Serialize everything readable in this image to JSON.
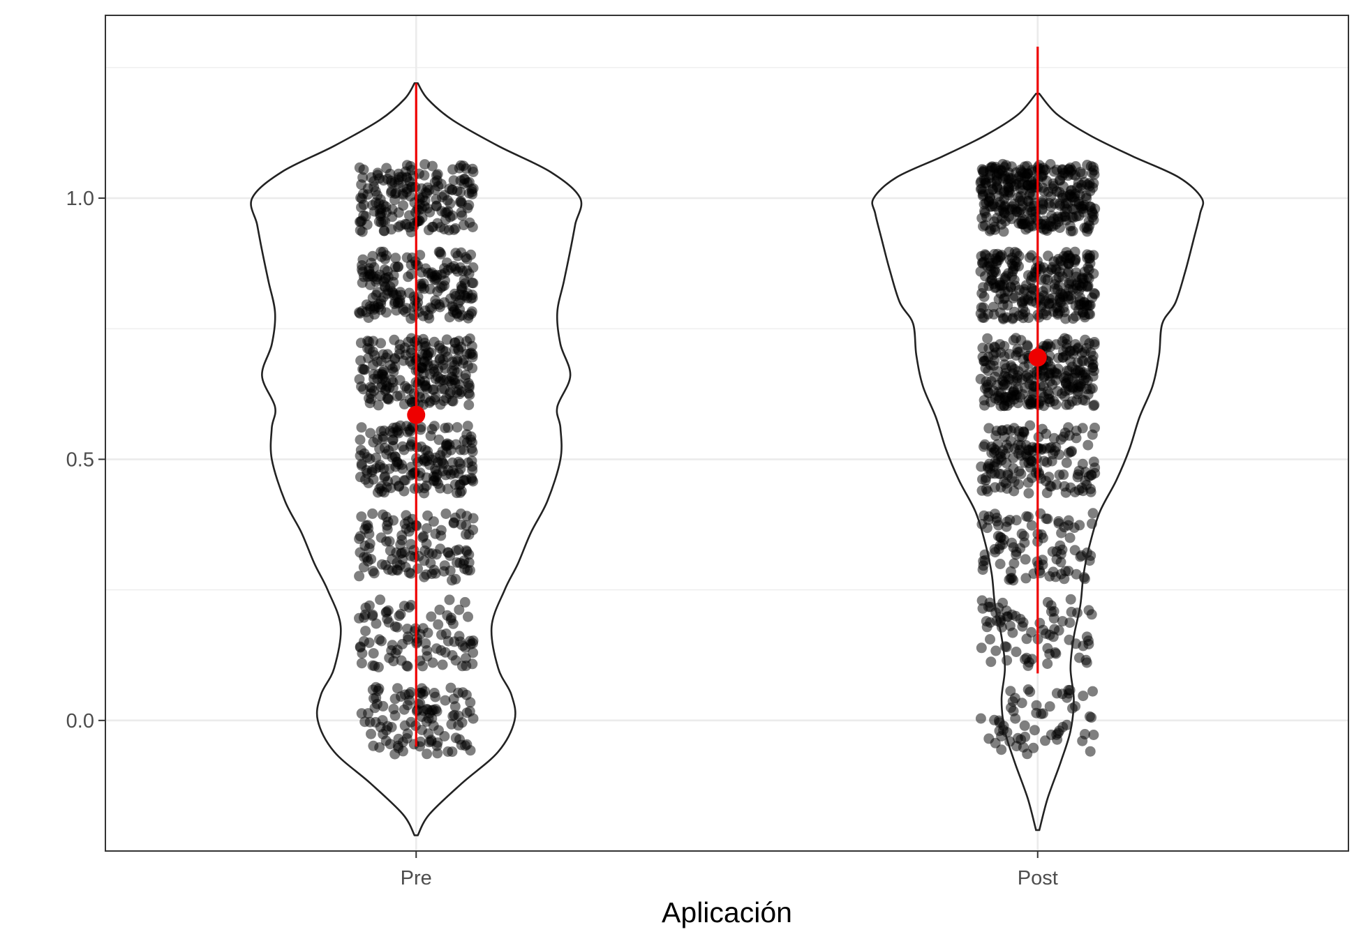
{
  "chart_data": {
    "type": "violin",
    "title": "",
    "xlabel": "Aplicación",
    "ylabel": "",
    "categories": [
      "Pre",
      "Post"
    ],
    "yticks": [
      0.0,
      0.5,
      1.0
    ],
    "ytick_labels": [
      "0.0",
      "0.5",
      "1.0"
    ],
    "ylim": [
      -0.25,
      1.35
    ],
    "grid": true,
    "legend": "none",
    "point_levels": [
      0.0,
      0.167,
      0.333,
      0.5,
      0.667,
      0.833,
      1.0
    ],
    "series": [
      {
        "category": "Pre",
        "mean": 0.585,
        "range": [
          -0.05,
          1.22
        ],
        "violin_extent": [
          -0.22,
          1.22
        ],
        "density_by_level": [
          0.58,
          0.42,
          0.58,
          0.86,
          1.0,
          0.82,
          0.82
        ],
        "points_per_level": [
          110,
          95,
          120,
          180,
          210,
          190,
          185
        ],
        "violin_profile": [
          [
            -0.22,
            0.01
          ],
          [
            -0.18,
            0.08
          ],
          [
            -0.12,
            0.28
          ],
          [
            -0.06,
            0.5
          ],
          [
            0.0,
            0.6
          ],
          [
            0.05,
            0.58
          ],
          [
            0.1,
            0.5
          ],
          [
            0.18,
            0.46
          ],
          [
            0.25,
            0.54
          ],
          [
            0.3,
            0.62
          ],
          [
            0.36,
            0.7
          ],
          [
            0.42,
            0.8
          ],
          [
            0.5,
            0.88
          ],
          [
            0.56,
            0.88
          ],
          [
            0.6,
            0.86
          ],
          [
            0.66,
            0.94
          ],
          [
            0.72,
            0.88
          ],
          [
            0.78,
            0.86
          ],
          [
            0.84,
            0.9
          ],
          [
            0.9,
            0.94
          ],
          [
            0.95,
            0.97
          ],
          [
            1.0,
            1.0
          ],
          [
            1.05,
            0.82
          ],
          [
            1.1,
            0.5
          ],
          [
            1.15,
            0.22
          ],
          [
            1.19,
            0.07
          ],
          [
            1.22,
            0.01
          ]
        ]
      },
      {
        "category": "Post",
        "mean": 0.695,
        "range": [
          0.09,
          1.29
        ],
        "violin_extent": [
          -0.21,
          1.2
        ],
        "density_by_level": [
          0.22,
          0.26,
          0.36,
          0.56,
          0.72,
          0.82,
          1.0
        ],
        "points_per_level": [
          60,
          75,
          95,
          160,
          260,
          260,
          320
        ],
        "violin_profile": [
          [
            -0.21,
            0.01
          ],
          [
            -0.15,
            0.06
          ],
          [
            -0.08,
            0.14
          ],
          [
            -0.02,
            0.2
          ],
          [
            0.04,
            0.22
          ],
          [
            0.1,
            0.2
          ],
          [
            0.16,
            0.22
          ],
          [
            0.22,
            0.26
          ],
          [
            0.28,
            0.28
          ],
          [
            0.34,
            0.32
          ],
          [
            0.4,
            0.38
          ],
          [
            0.46,
            0.48
          ],
          [
            0.52,
            0.56
          ],
          [
            0.58,
            0.62
          ],
          [
            0.64,
            0.7
          ],
          [
            0.7,
            0.74
          ],
          [
            0.76,
            0.76
          ],
          [
            0.8,
            0.84
          ],
          [
            0.86,
            0.9
          ],
          [
            0.92,
            0.95
          ],
          [
            0.97,
            0.99
          ],
          [
            1.0,
            1.0
          ],
          [
            1.04,
            0.86
          ],
          [
            1.08,
            0.58
          ],
          [
            1.12,
            0.32
          ],
          [
            1.16,
            0.12
          ],
          [
            1.2,
            0.01
          ]
        ]
      }
    ]
  },
  "colors": {
    "points": "#000000",
    "mean_and_range": "#ee0000",
    "violin_outline": "#222222",
    "grid": "#ebebeb",
    "panel_border": "#333333",
    "tick_text": "#4d4d4d"
  }
}
